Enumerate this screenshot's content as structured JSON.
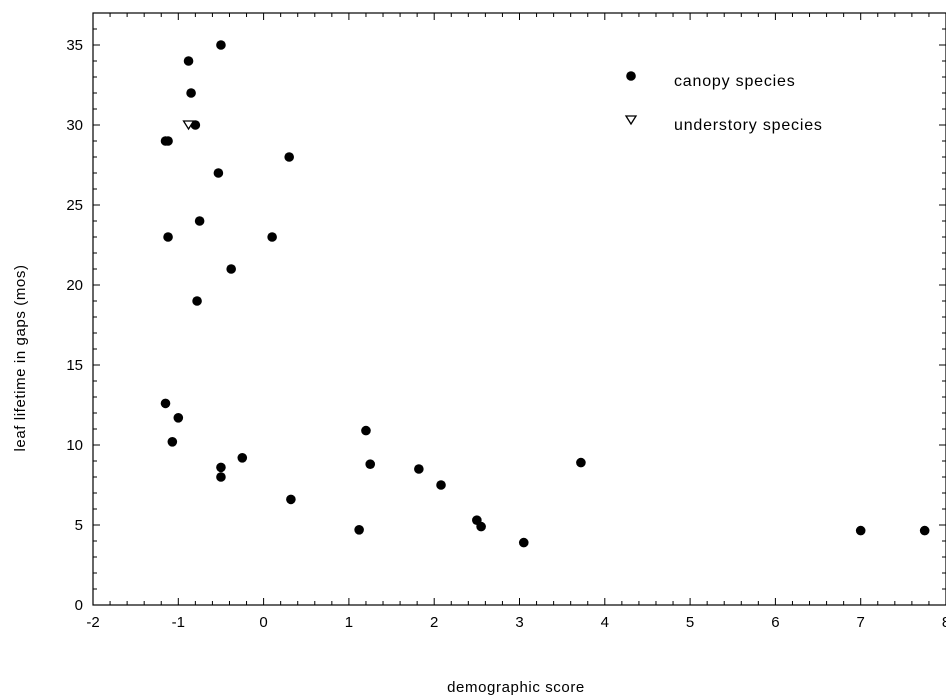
{
  "chart_data": {
    "type": "scatter",
    "xlabel": "demographic  score",
    "ylabel": "leaf  lifetime  in  gaps  (mos)",
    "xlim": [
      -2,
      8
    ],
    "ylim": [
      0,
      37
    ],
    "x_ticks": [
      "-2",
      "-1",
      "0",
      "1",
      "2",
      "3",
      "4",
      "5",
      "6",
      "7",
      "8"
    ],
    "y_ticks": [
      "0",
      "5",
      "10",
      "15",
      "20",
      "25",
      "30",
      "35"
    ],
    "legend_position": "top-right",
    "grid": false,
    "series": [
      {
        "name": "canopy species",
        "marker": "filled-circle",
        "color": "#000000",
        "points": [
          [
            -0.5,
            35
          ],
          [
            -0.88,
            34
          ],
          [
            -0.85,
            32
          ],
          [
            -0.8,
            30
          ],
          [
            -1.15,
            29
          ],
          [
            -1.12,
            29
          ],
          [
            0.3,
            28
          ],
          [
            -0.53,
            27
          ],
          [
            -0.75,
            24
          ],
          [
            -1.12,
            23
          ],
          [
            0.1,
            23
          ],
          [
            -0.38,
            21
          ],
          [
            -0.78,
            19
          ],
          [
            -1.15,
            12.6
          ],
          [
            -1.0,
            11.7
          ],
          [
            -1.07,
            10.2
          ],
          [
            -0.5,
            8.6
          ],
          [
            -0.5,
            8.0
          ],
          [
            -0.25,
            9.2
          ],
          [
            0.32,
            6.6
          ],
          [
            1.2,
            10.9
          ],
          [
            1.25,
            8.8
          ],
          [
            1.12,
            4.7
          ],
          [
            1.82,
            8.5
          ],
          [
            2.08,
            7.5
          ],
          [
            2.5,
            5.3
          ],
          [
            2.55,
            4.9
          ],
          [
            3.05,
            3.9
          ],
          [
            3.72,
            8.9
          ],
          [
            7.0,
            4.65
          ],
          [
            7.75,
            4.65
          ]
        ]
      },
      {
        "name": "understory species",
        "marker": "open-triangle-down",
        "color": "#000000",
        "points": [
          [
            -0.88,
            30
          ]
        ]
      }
    ]
  }
}
